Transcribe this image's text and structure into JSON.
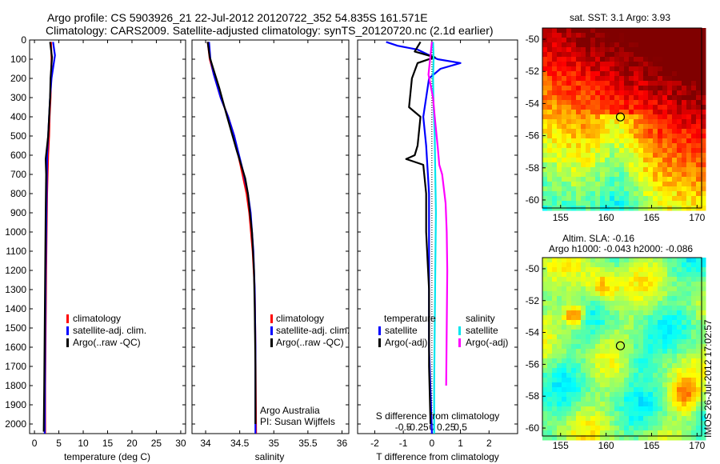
{
  "figure": {
    "title_line1": "Argo profile: CS 5903926_21 22-Jul-2012 20120722_352 54.835S 161.571E",
    "title_line2": "Climatology: CARS2009. Satellite-adjusted climatology: synTS_20120720.nc (2.1d earlier)",
    "timestamp": "IMOS 26-Jul-2012 17:02:57",
    "credit_line1": "Argo Australia",
    "credit_line2": "PI: Susan Wijffels"
  },
  "colors": {
    "climatology": "#ff0000",
    "satellite": "#0000ff",
    "argo": "#000000",
    "sal_satellite": "#00e5ee",
    "sal_argo": "#ff00ff"
  },
  "chart_data": [
    {
      "id": "temperature",
      "type": "line",
      "xlabel": "temperature (deg C)",
      "ylabel": "",
      "xlim": [
        -1,
        31
      ],
      "ylim": [
        2050,
        0
      ],
      "xticks": [
        0,
        5,
        10,
        15,
        20,
        25,
        30
      ],
      "yticks": [
        0,
        100,
        200,
        300,
        400,
        500,
        600,
        700,
        800,
        900,
        1000,
        1100,
        1200,
        1300,
        1400,
        1500,
        1600,
        1700,
        1800,
        1900,
        2000
      ],
      "legend": [
        "climatology",
        "satellite-adj. clim.",
        "Argo(..raw -QC)"
      ],
      "series": [
        {
          "name": "climatology",
          "color": "#ff0000",
          "x": [
            3.4,
            3.5,
            3.4,
            3.3,
            3.1,
            3.0,
            2.8,
            2.6,
            2.5,
            2.4,
            2.3,
            2.2,
            2.2
          ],
          "y": [
            10,
            100,
            200,
            300,
            400,
            500,
            600,
            800,
            1000,
            1200,
            1500,
            1800,
            2050
          ]
        },
        {
          "name": "satellite-adj. clim.",
          "color": "#0000ff",
          "x": [
            3.8,
            4.2,
            3.5,
            3.2,
            3.0,
            2.8,
            2.6,
            2.5,
            2.4,
            2.3,
            2.2,
            2.1
          ],
          "y": [
            10,
            80,
            200,
            300,
            400,
            500,
            600,
            800,
            1000,
            1200,
            1500,
            2050
          ]
        },
        {
          "name": "Argo(..raw -QC)",
          "color": "#000000",
          "x": [
            3.2,
            3.6,
            3.3,
            3.2,
            3.0,
            2.8,
            2.3,
            2.4,
            2.3,
            2.2,
            2.1,
            2.0,
            1.9
          ],
          "y": [
            10,
            90,
            200,
            300,
            400,
            500,
            620,
            700,
            900,
            1200,
            1500,
            1800,
            2040
          ]
        }
      ]
    },
    {
      "id": "salinity",
      "type": "line",
      "xlabel": "salinity",
      "ylabel": "",
      "xlim": [
        33.8,
        36.1
      ],
      "ylim": [
        2050,
        0
      ],
      "xticks": [
        34,
        34.5,
        35,
        35.5,
        36
      ],
      "xticklabels": [
        "34",
        "34.5",
        "35",
        "35.5",
        "36"
      ],
      "legend": [
        "climatology",
        "satellite-adj. clim.",
        "Argo(..raw -QC)"
      ],
      "series": [
        {
          "name": "climatology",
          "color": "#ff0000",
          "x": [
            34.03,
            34.06,
            34.12,
            34.22,
            34.33,
            34.42,
            34.48,
            34.54,
            34.6,
            34.64,
            34.69,
            34.72,
            34.73,
            34.74
          ],
          "y": [
            10,
            100,
            180,
            300,
            400,
            500,
            600,
            700,
            800,
            900,
            1100,
            1300,
            1600,
            2050
          ]
        },
        {
          "name": "satellite-adj. clim.",
          "color": "#0000ff",
          "x": [
            34.05,
            34.07,
            34.12,
            34.22,
            34.33,
            34.42,
            34.49,
            34.56,
            34.62,
            34.66,
            34.7,
            34.72,
            34.73,
            34.73
          ],
          "y": [
            10,
            100,
            180,
            300,
            400,
            500,
            600,
            700,
            800,
            900,
            1100,
            1300,
            1600,
            2050
          ]
        },
        {
          "name": "Argo(..raw -QC)",
          "color": "#000000",
          "x": [
            34.03,
            34.06,
            34.13,
            34.2,
            34.3,
            34.38,
            34.46,
            34.52,
            34.58,
            34.62,
            34.65,
            34.68,
            34.71,
            34.72,
            34.73,
            34.73
          ],
          "y": [
            10,
            90,
            170,
            250,
            380,
            480,
            580,
            650,
            720,
            800,
            900,
            1000,
            1200,
            1400,
            1700,
            2000
          ]
        }
      ]
    },
    {
      "id": "difference",
      "type": "line",
      "xlabel": "T difference from climatology",
      "xlabel_top": "S difference from climatology",
      "ylabel": "",
      "xlim": [
        -2.6,
        3
      ],
      "ylim": [
        2050,
        0
      ],
      "xticks": [
        -2,
        -1,
        0,
        1,
        2
      ],
      "xticklabels": [
        "-2",
        "-1",
        "0",
        "1",
        "2"
      ],
      "sticks": [
        -0.5,
        -0.25,
        0,
        0.25,
        0.5
      ],
      "sticklabels": [
        "-0.5",
        "-0.25",
        "0",
        "0.25",
        "0.5"
      ],
      "legend_title_left": "temperature",
      "legend_title_right": "salinity",
      "legend": [
        "satellite",
        "Argo(-adj)",
        "satellite",
        "Argo(-adj)"
      ],
      "series": [
        {
          "name": "T satellite",
          "color": "#0000ff",
          "x": [
            -1.6,
            -1.2,
            -0.5,
            0.2,
            1.0,
            0.3,
            -0.1,
            -0.2,
            -0.3,
            -0.2,
            -0.1,
            -0.1,
            -0.1,
            0.0
          ],
          "y": [
            10,
            30,
            50,
            100,
            120,
            150,
            200,
            300,
            400,
            550,
            800,
            1200,
            1600,
            2050
          ]
        },
        {
          "name": "T Argo(-adj)",
          "color": "#000000",
          "x": [
            -0.4,
            -0.6,
            0.1,
            -0.5,
            -0.7,
            -0.8,
            -0.4,
            -0.5,
            -0.6,
            -0.9,
            -0.3,
            -0.2,
            -0.2,
            -0.1,
            -0.1,
            -0.05
          ],
          "y": [
            10,
            60,
            90,
            120,
            200,
            350,
            400,
            550,
            600,
            620,
            650,
            800,
            1000,
            1300,
            1700,
            2000
          ]
        },
        {
          "name": "S satellite",
          "color": "#00e5ee",
          "x": [
            0.02,
            0.03,
            0.02,
            0.03,
            0.05,
            0.06,
            0.07,
            0.06,
            0.05,
            0.04,
            0.04
          ],
          "y": [
            10,
            100,
            200,
            350,
            500,
            700,
            900,
            1200,
            1500,
            1800,
            2050
          ]
        },
        {
          "name": "S Argo(-adj)",
          "color": "#ff00ff",
          "x": [
            0.0,
            -0.06,
            0.02,
            0.05,
            0.1,
            0.13,
            0.18,
            0.24,
            0.26,
            0.27,
            0.26,
            0.25
          ],
          "y": [
            10,
            180,
            300,
            400,
            550,
            650,
            700,
            850,
            1000,
            1200,
            1500,
            1800
          ]
        }
      ]
    },
    {
      "id": "sst-map",
      "type": "heatmap",
      "title": "sat. SST: 3.1  Argo: 3.93",
      "xlim": [
        153,
        170.5
      ],
      "ylim": [
        -60.5,
        -49.3
      ],
      "xticks": [
        155,
        160,
        165,
        170
      ],
      "yticks": [
        -50,
        -52,
        -54,
        -56,
        -58,
        -60
      ],
      "yticklabels": [
        "-50",
        "-52",
        "-54",
        "-56",
        "-58",
        "-60"
      ],
      "profile_marker": {
        "lon": 161.571,
        "lat": -54.835
      },
      "palette": "jet",
      "pattern": "cold south-west, warm north-east"
    },
    {
      "id": "sla-map",
      "type": "heatmap",
      "title_line1": "Altim. SLA: -0.16",
      "title_line2": "Argo h1000: -0.043  h2000: -0.086",
      "xlim": [
        153,
        170.5
      ],
      "ylim": [
        -60.5,
        -49.3
      ],
      "xticks": [
        155,
        160,
        165,
        170
      ],
      "yticks": [
        -50,
        -52,
        -54,
        -56,
        -58,
        -60
      ],
      "yticklabels": [
        "-50",
        "-52",
        "-54",
        "-56",
        "-58",
        "-60"
      ],
      "profile_marker": {
        "lon": 161.571,
        "lat": -54.835
      },
      "palette": "jet",
      "pattern": "patchy green background"
    }
  ]
}
